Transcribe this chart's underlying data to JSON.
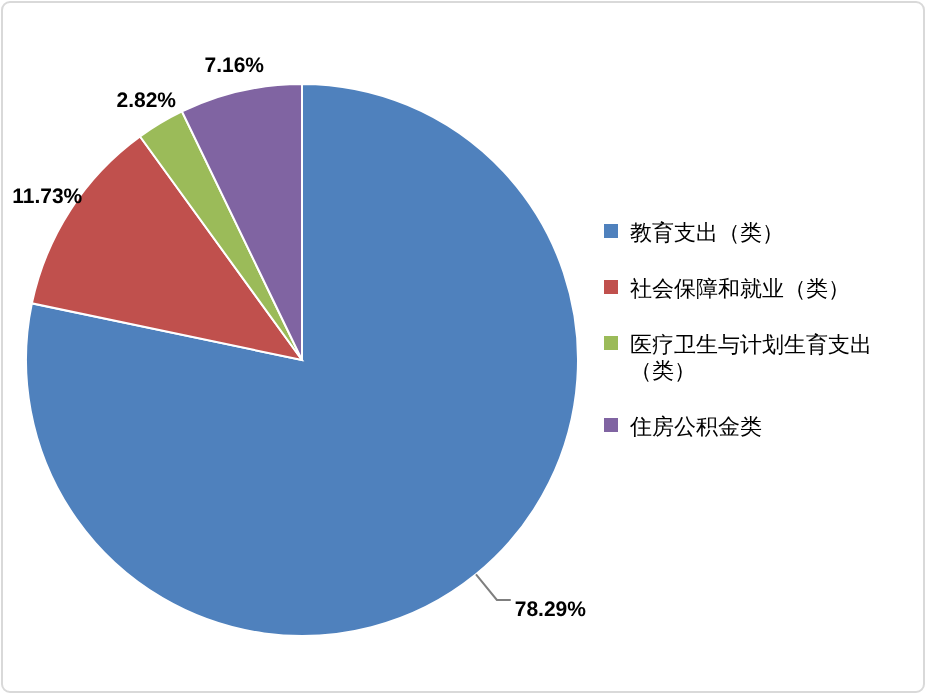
{
  "chart_data": {
    "type": "pie",
    "categories": [
      "教育支出（类）",
      "社会保障和就业（类）",
      "医疗卫生与计划生育支出（类）",
      "住房公积金类"
    ],
    "values": [
      78.29,
      11.73,
      2.82,
      7.16
    ],
    "colors": [
      "#4f81bd",
      "#c0504d",
      "#9bbb59",
      "#8064a2"
    ],
    "value_labels": [
      "78.29%",
      "11.73%",
      "2.82%",
      "7.16%"
    ],
    "legend": "right"
  }
}
